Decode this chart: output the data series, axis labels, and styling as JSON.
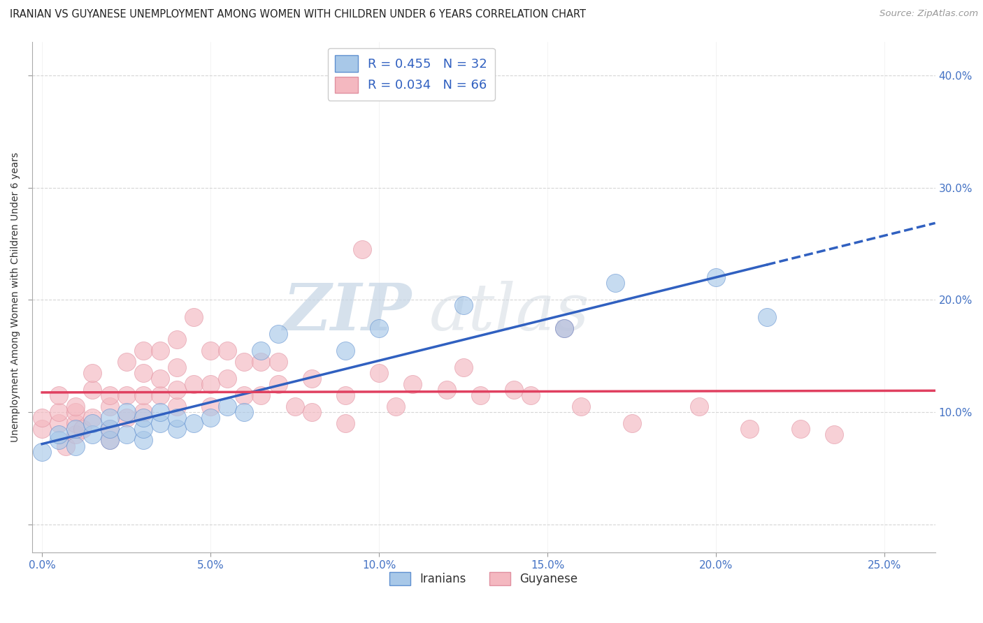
{
  "title": "IRANIAN VS GUYANESE UNEMPLOYMENT AMONG WOMEN WITH CHILDREN UNDER 6 YEARS CORRELATION CHART",
  "source": "Source: ZipAtlas.com",
  "xlabel_ticks": [
    0.0,
    0.05,
    0.1,
    0.15,
    0.2,
    0.25
  ],
  "ylabel_ticks": [
    0.0,
    0.1,
    0.2,
    0.3,
    0.4
  ],
  "xlim": [
    -0.003,
    0.265
  ],
  "ylim": [
    -0.025,
    0.43
  ],
  "ylabel": "Unemployment Among Women with Children Under 6 years",
  "legend_iranian": "R = 0.455   N = 32",
  "legend_guyanese": "R = 0.034   N = 66",
  "color_iranian": "#a8c8e8",
  "color_guyanese": "#f4b8c0",
  "line_iranian": "#3060c0",
  "line_guyanese": "#e04060",
  "iranians_x": [
    0.0,
    0.005,
    0.005,
    0.01,
    0.01,
    0.015,
    0.015,
    0.02,
    0.02,
    0.02,
    0.025,
    0.025,
    0.03,
    0.03,
    0.03,
    0.035,
    0.035,
    0.04,
    0.04,
    0.045,
    0.05,
    0.055,
    0.06,
    0.065,
    0.07,
    0.09,
    0.1,
    0.125,
    0.155,
    0.17,
    0.2,
    0.215
  ],
  "iranians_y": [
    0.065,
    0.075,
    0.08,
    0.07,
    0.085,
    0.08,
    0.09,
    0.075,
    0.085,
    0.095,
    0.08,
    0.1,
    0.075,
    0.085,
    0.095,
    0.09,
    0.1,
    0.085,
    0.095,
    0.09,
    0.095,
    0.105,
    0.1,
    0.155,
    0.17,
    0.155,
    0.175,
    0.195,
    0.175,
    0.215,
    0.22,
    0.185
  ],
  "guyanese_x": [
    0.0,
    0.0,
    0.005,
    0.005,
    0.005,
    0.007,
    0.01,
    0.01,
    0.01,
    0.01,
    0.012,
    0.015,
    0.015,
    0.015,
    0.02,
    0.02,
    0.02,
    0.02,
    0.025,
    0.025,
    0.025,
    0.03,
    0.03,
    0.03,
    0.03,
    0.035,
    0.035,
    0.035,
    0.04,
    0.04,
    0.04,
    0.04,
    0.045,
    0.045,
    0.05,
    0.05,
    0.05,
    0.055,
    0.055,
    0.06,
    0.06,
    0.065,
    0.065,
    0.07,
    0.07,
    0.075,
    0.08,
    0.08,
    0.09,
    0.09,
    0.095,
    0.1,
    0.105,
    0.11,
    0.12,
    0.125,
    0.13,
    0.14,
    0.145,
    0.155,
    0.16,
    0.175,
    0.195,
    0.21,
    0.225,
    0.235
  ],
  "guyanese_y": [
    0.085,
    0.095,
    0.09,
    0.1,
    0.115,
    0.07,
    0.08,
    0.09,
    0.1,
    0.105,
    0.085,
    0.095,
    0.12,
    0.135,
    0.075,
    0.085,
    0.105,
    0.115,
    0.095,
    0.115,
    0.145,
    0.1,
    0.115,
    0.135,
    0.155,
    0.115,
    0.13,
    0.155,
    0.105,
    0.12,
    0.14,
    0.165,
    0.125,
    0.185,
    0.105,
    0.125,
    0.155,
    0.13,
    0.155,
    0.115,
    0.145,
    0.115,
    0.145,
    0.125,
    0.145,
    0.105,
    0.13,
    0.1,
    0.09,
    0.115,
    0.245,
    0.135,
    0.105,
    0.125,
    0.12,
    0.14,
    0.115,
    0.12,
    0.115,
    0.175,
    0.105,
    0.09,
    0.105,
    0.085,
    0.085,
    0.08
  ],
  "watermark_zip": "ZIP",
  "watermark_atlas": "atlas",
  "background_color": "#ffffff",
  "grid_color": "#dddddd"
}
